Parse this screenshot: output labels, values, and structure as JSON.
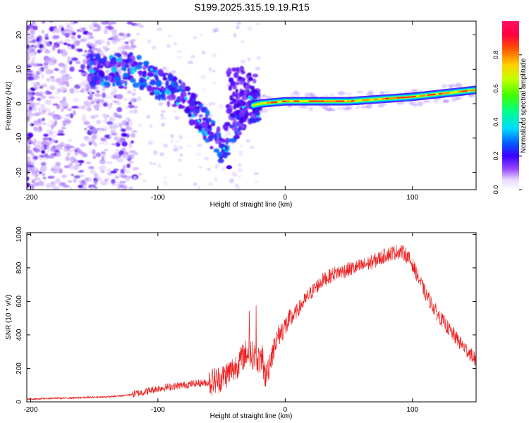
{
  "title": "S199.2025.315.19.19.R15",
  "chart_data": [
    {
      "type": "heatmap",
      "xlabel": "Height of straight line (km)",
      "ylabel": "Frequency (Hz)",
      "xlim": [
        -203,
        150
      ],
      "ylim": [
        -25,
        24
      ],
      "xticks": [
        -200,
        -100,
        0,
        100
      ],
      "yticks": [
        -20,
        -10,
        0,
        10,
        20
      ],
      "colorbar": {
        "label": "Normalized spectral amplitude",
        "range": [
          0,
          1
        ],
        "ticks": [
          "0.0",
          "0.2",
          "0.4",
          "0.6",
          "0.8"
        ]
      },
      "ridge": [
        {
          "x": -150,
          "f": 10
        },
        {
          "x": -120,
          "f": 10
        },
        {
          "x": -100,
          "f": 6
        },
        {
          "x": -80,
          "f": 2
        },
        {
          "x": -60,
          "f": -7
        },
        {
          "x": -50,
          "f": -13
        },
        {
          "x": -30,
          "f": -1
        },
        {
          "x": -20,
          "f": 0
        },
        {
          "x": 0,
          "f": 0.7
        },
        {
          "x": 50,
          "f": 0.7
        },
        {
          "x": 100,
          "f": 2
        },
        {
          "x": 150,
          "f": 4
        }
      ]
    },
    {
      "type": "line",
      "xlabel": "Height of straight line (km)",
      "ylabel": "SNR (10 * v/v)",
      "xlim": [
        -203,
        150
      ],
      "ylim": [
        0,
        1010
      ],
      "xticks": [
        -200,
        -100,
        0,
        100
      ],
      "yticks": [
        0,
        200,
        400,
        600,
        800,
        1000
      ],
      "series": [
        {
          "name": "SNR",
          "color": "#ee2222",
          "x": [
            -203,
            -190,
            -175,
            -160,
            -150,
            -140,
            -130,
            -120,
            -110,
            -100,
            -90,
            -80,
            -70,
            -60,
            -50,
            -40,
            -30,
            -20,
            -15,
            -10,
            -5,
            0,
            10,
            20,
            30,
            40,
            50,
            60,
            70,
            80,
            90,
            95,
            100,
            110,
            120,
            130,
            140,
            150
          ],
          "values": [
            15,
            20,
            22,
            25,
            28,
            30,
            35,
            45,
            60,
            80,
            90,
            100,
            110,
            115,
            140,
            200,
            300,
            250,
            150,
            300,
            400,
            450,
            550,
            650,
            730,
            770,
            790,
            810,
            840,
            880,
            900,
            880,
            820,
            650,
            520,
            420,
            330,
            250
          ]
        }
      ]
    }
  ]
}
